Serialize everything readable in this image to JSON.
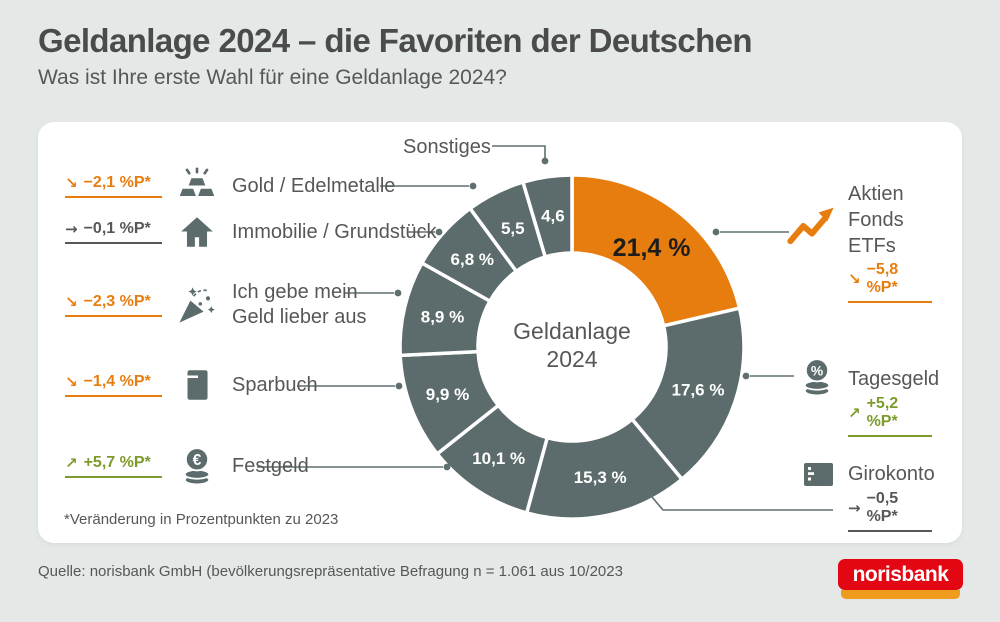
{
  "header": {
    "title": "Geldanlage 2024 – die Favoriten der Deutschen",
    "subtitle": "Was ist Ihre erste Wahl für eine Geldanlage 2024?"
  },
  "chart_data": {
    "type": "pie",
    "variant": "donut",
    "title": "Geldanlage 2024 – die Favoriten der Deutschen",
    "center_label": [
      "Geldanlage",
      "2024"
    ],
    "unit": "%",
    "segments": [
      {
        "label": "Aktien / Fonds / ETFs",
        "value": 21.4,
        "display": "21,4 %",
        "color": "#e87d0f",
        "highlight": true
      },
      {
        "label": "Tagesgeld",
        "value": 17.6,
        "display": "17,6 %",
        "color": "#5c6c6c"
      },
      {
        "label": "Girokonto",
        "value": 15.3,
        "display": "15,3 %",
        "color": "#5c6c6c"
      },
      {
        "label": "Festgeld",
        "value": 10.1,
        "display": "10,1 %",
        "color": "#5c6c6c"
      },
      {
        "label": "Sparbuch",
        "value": 9.9,
        "display": "9,9 %",
        "color": "#5c6c6c"
      },
      {
        "label": "Ich gebe mein Geld lieber aus",
        "value": 8.9,
        "display": "8,9 %",
        "color": "#5c6c6c"
      },
      {
        "label": "Immobilie / Grundstück",
        "value": 6.8,
        "display": "6,8 %",
        "color": "#5c6c6c"
      },
      {
        "label": "Gold / Edelmetalle",
        "value": 5.5,
        "display": "5,5",
        "color": "#5c6c6c"
      },
      {
        "label": "Sonstiges",
        "value": 4.6,
        "display": "4,6",
        "color": "#5c6c6c"
      }
    ]
  },
  "left_legend": [
    {
      "arrow": "↘",
      "trend": "down",
      "change": "−2,1 %P*",
      "label": "Gold / Edelmetalle",
      "icon": "gold-bars"
    },
    {
      "arrow": "→",
      "trend": "flat",
      "change": "−0,1 %P*",
      "label": "Immobilie / Grundstück",
      "icon": "house"
    },
    {
      "arrow": "↘",
      "trend": "down",
      "change": "−2,3 %P*",
      "label": "Ich gebe mein Geld lieber aus",
      "icon": "party-popper"
    },
    {
      "arrow": "↘",
      "trend": "down",
      "change": "−1,4 %P*",
      "label": "Sparbuch",
      "icon": "savings-book"
    },
    {
      "arrow": "↗",
      "trend": "up",
      "change": "+5,7 %P*",
      "label": "Festgeld",
      "icon": "euro-coins"
    }
  ],
  "right_legend": [
    {
      "label_lines": [
        "Aktien",
        "Fonds",
        "ETFs"
      ],
      "arrow": "↘",
      "trend": "down",
      "change": "−5,8 %P*",
      "icon": "stock-arrow"
    },
    {
      "label": "Tagesgeld",
      "arrow": "↗",
      "trend": "up",
      "change": "+5,2 %P*",
      "icon": "percent-coins"
    },
    {
      "label": "Girokonto",
      "arrow": "→",
      "trend": "flat",
      "change": "−0,5 %P*",
      "icon": "bank-card"
    }
  ],
  "footnote": "*Veränderung in Prozentpunkten zu 2023",
  "source": "Quelle: norisbank GmbH (bevölkerungsrepräsentative Befragung n = 1.061 aus 10/2023",
  "logo": {
    "text": "norisbank"
  },
  "colors": {
    "accent_orange": "#e87d0f",
    "slate": "#5c6c6c",
    "green": "#7d9b2c",
    "text_gray": "#575756",
    "background": "#e4e8e7",
    "card": "#ffffff",
    "highlight_label": "#1d1d1b",
    "logo_red": "#e30613",
    "logo_orange": "#ef9c1e"
  }
}
